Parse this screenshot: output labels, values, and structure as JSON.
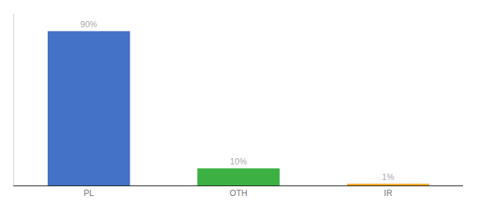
{
  "chart_data": {
    "type": "bar",
    "categories": [
      "PL",
      "OTH",
      "IR"
    ],
    "values": [
      90,
      10,
      1
    ],
    "value_labels": [
      "90%",
      "10%",
      "1%"
    ],
    "colors": [
      "#4472c4",
      "#3cb043",
      "#f5a623"
    ],
    "ylim": [
      0,
      100
    ],
    "yticks": [],
    "grid": false,
    "data_labels": true,
    "tick_labels": "x"
  }
}
